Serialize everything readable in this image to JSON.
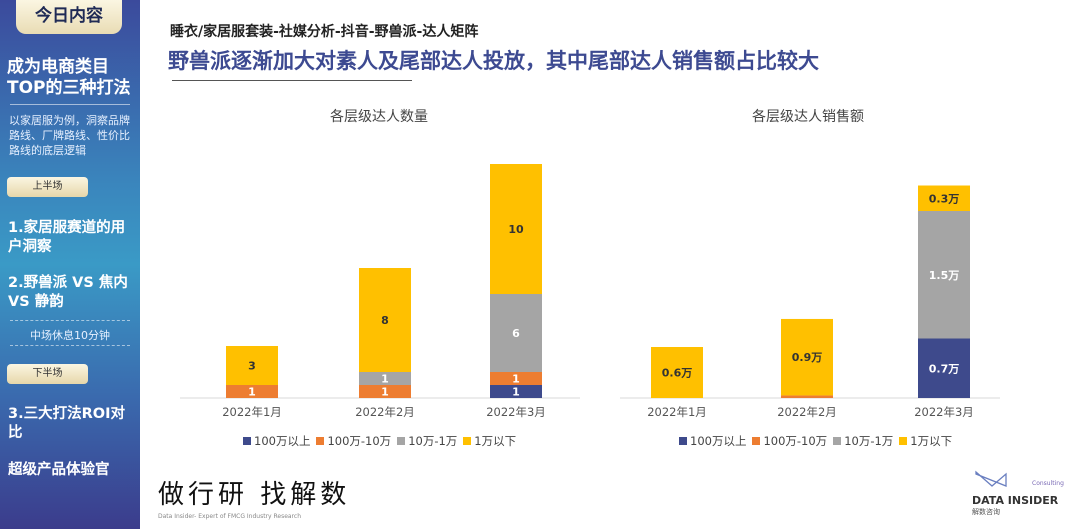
{
  "sidebar": {
    "header": "今日内容",
    "title": "成为电商类目TOP的三种打法",
    "description": "以家居服为例，洞察品牌路线、厂牌路线、性价比路线的底层逻辑",
    "first_half_label": "上半场",
    "items": [
      {
        "label": "1.家居服赛道的用户洞察"
      },
      {
        "label": "2.野兽派 VS 焦内 VS 静韵"
      }
    ],
    "break_label": "中场休息10分钟",
    "second_half_label": "下半场",
    "items2": [
      {
        "label": "3.三大打法ROI对比"
      },
      {
        "label": "超级产品体验官"
      }
    ]
  },
  "header": {
    "subtitle": "睡衣/家居服套装-社媒分析-抖音-野兽派-达人矩阵",
    "headline": "野兽派逐渐加大对素人及尾部达人投放，其中尾部达人销售额占比较大"
  },
  "colors": {
    "s100w_plus": "#3e4a8c",
    "s10w_100w": "#ed7d31",
    "s1w_10w": "#a5a5a5",
    "s1w_minus": "#ffc000",
    "headline": "#3d4a91"
  },
  "chart_data": [
    {
      "type": "bar",
      "stacked": true,
      "title": "各层级达人数量",
      "categories": [
        "2022年1月",
        "2022年2月",
        "2022年3月"
      ],
      "legend_position": "bottom",
      "grid": false,
      "series": [
        {
          "name": "100万以上",
          "values": [
            0,
            0,
            1
          ],
          "labels": [
            "",
            "",
            "1"
          ]
        },
        {
          "name": "100万-10万",
          "values": [
            1,
            1,
            1
          ],
          "labels": [
            "1",
            "1",
            "1"
          ]
        },
        {
          "name": "10万-1万",
          "values": [
            0,
            1,
            6
          ],
          "labels": [
            "",
            "1",
            "6"
          ]
        },
        {
          "name": "1万以下",
          "values": [
            3,
            8,
            10
          ],
          "labels": [
            "3",
            "8",
            "10"
          ]
        }
      ]
    },
    {
      "type": "bar",
      "stacked": true,
      "title": "各层级达人销售额",
      "unit": "万",
      "categories": [
        "2022年1月",
        "2022年2月",
        "2022年3月"
      ],
      "legend_position": "bottom",
      "grid": false,
      "series": [
        {
          "name": "100万以上",
          "values": [
            0,
            0,
            0.7
          ],
          "labels": [
            "",
            "",
            "0.7万"
          ]
        },
        {
          "name": "100万-10万",
          "values": [
            0,
            0.03,
            0
          ],
          "labels": [
            "",
            "",
            ""
          ]
        },
        {
          "name": "10万-1万",
          "values": [
            0,
            0,
            1.5
          ],
          "labels": [
            "",
            "",
            "1.5万"
          ]
        },
        {
          "name": "1万以下",
          "values": [
            0.6,
            0.9,
            0.3
          ],
          "labels": [
            "0.6万",
            "0.9万",
            "0.3万"
          ]
        }
      ]
    }
  ],
  "footer": {
    "brand_cn": "做行研 找解数",
    "brand_en": "Data Insider- Expert of FMCG Industry Research",
    "logo_name": "DATA INSIDER",
    "logo_cn": "解数咨询",
    "logo_tag": "Consulting"
  }
}
